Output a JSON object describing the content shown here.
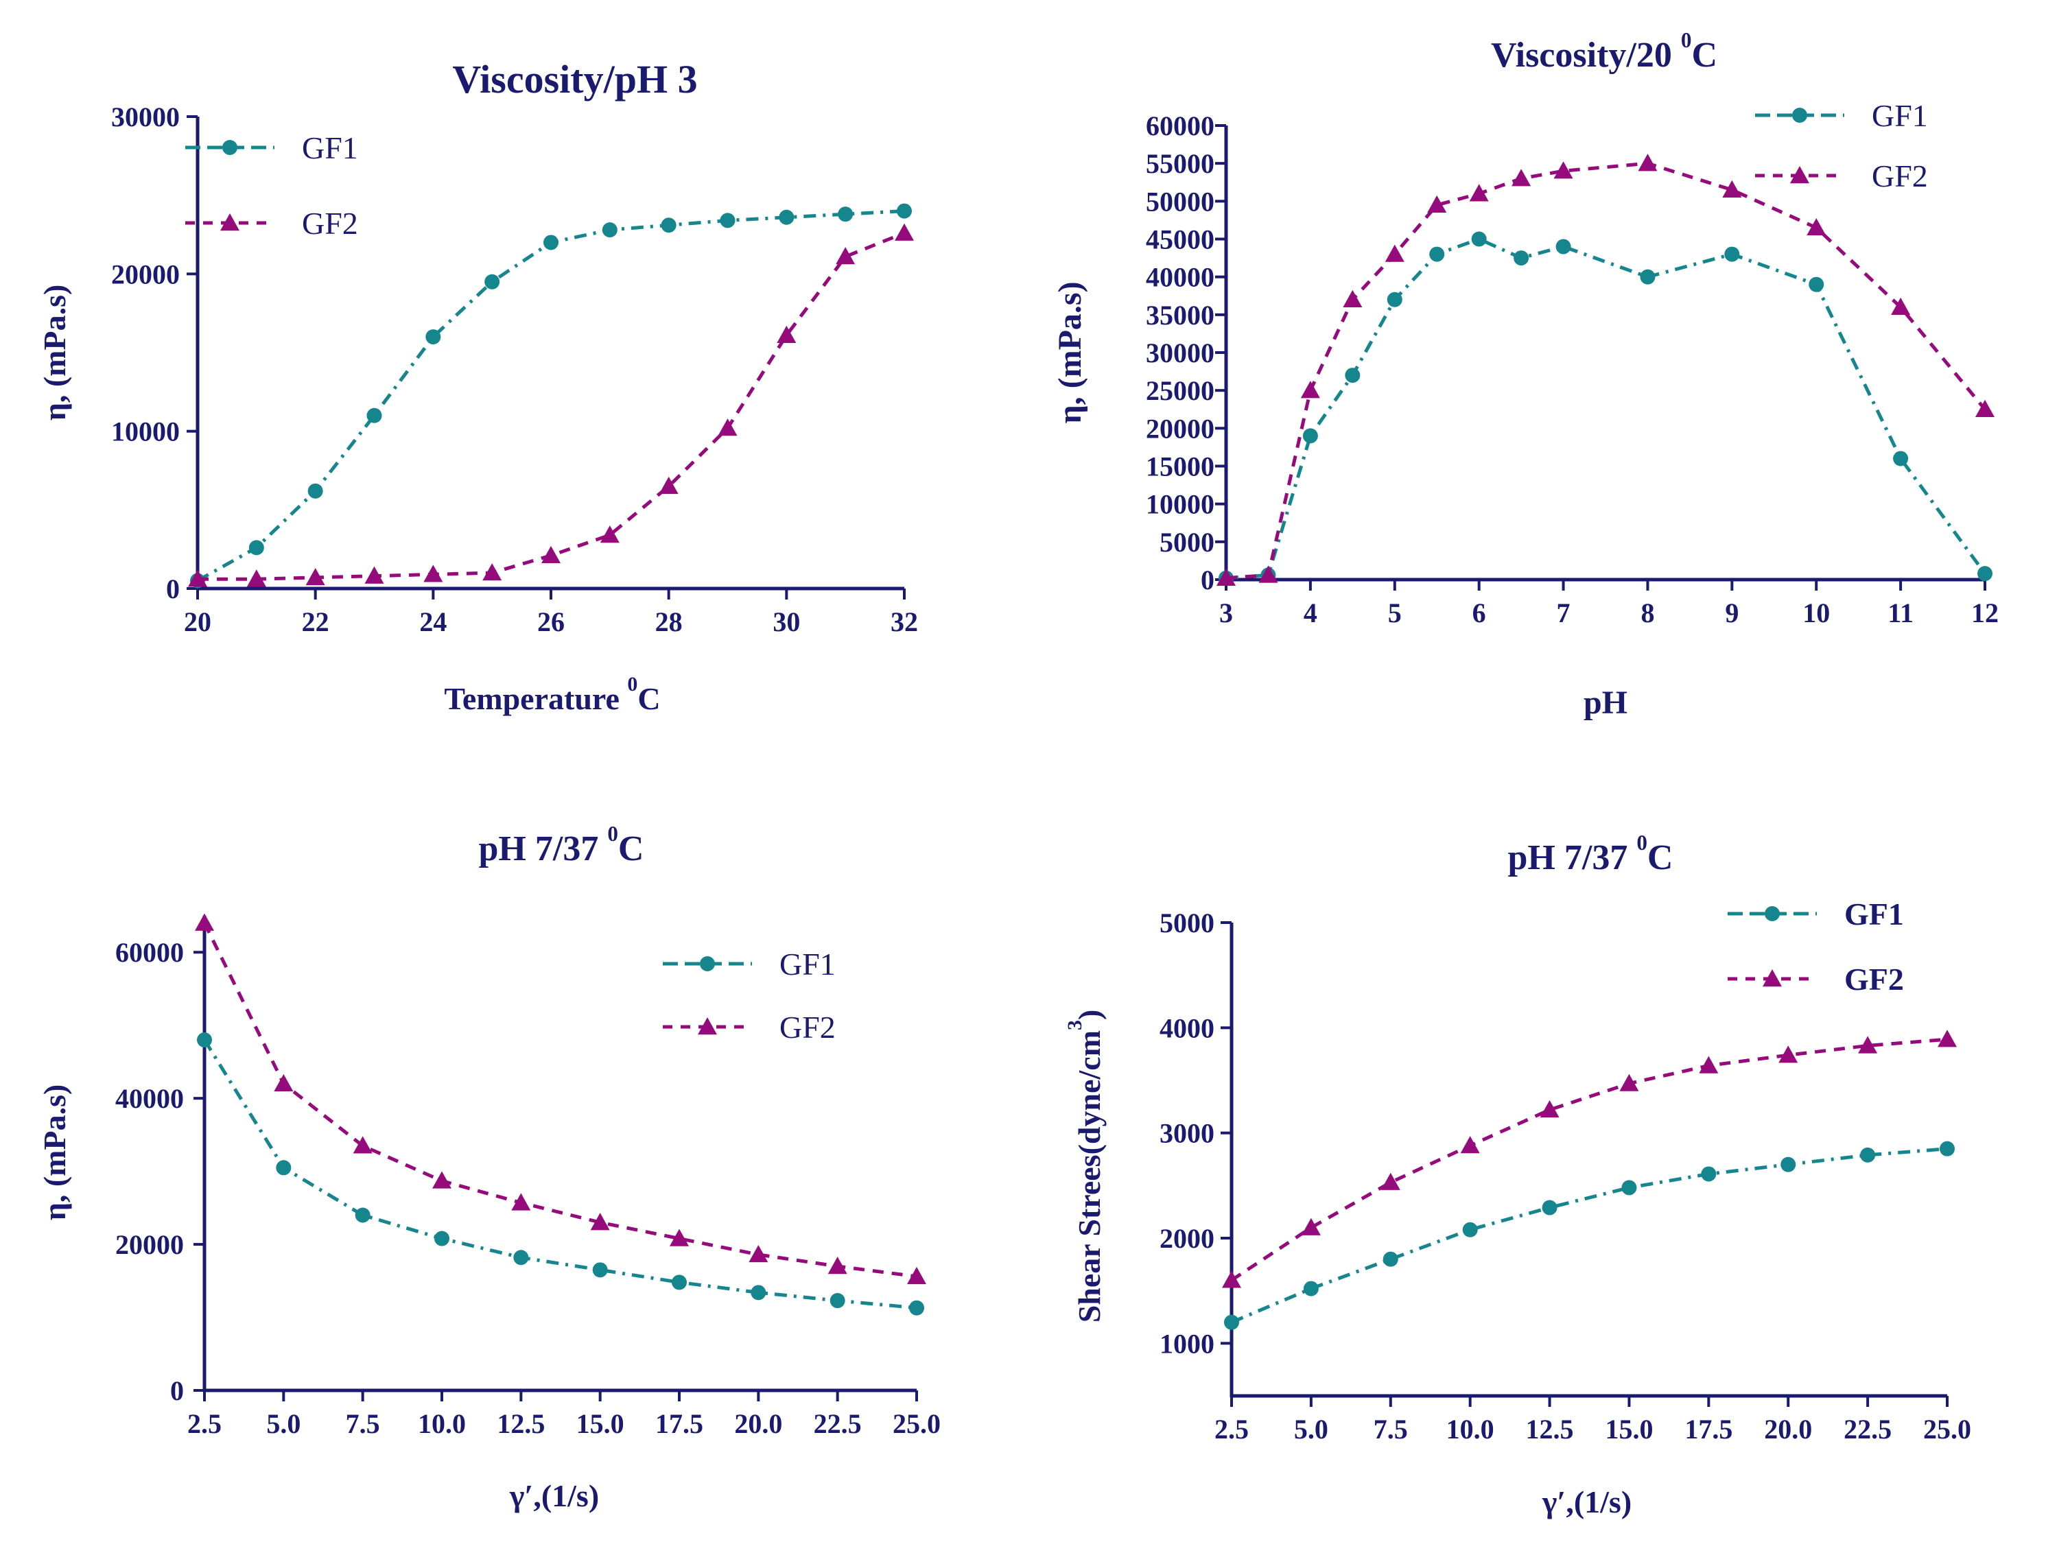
{
  "colors": {
    "gf1": "#16868e",
    "gf2": "#960b7c",
    "axis": "#1a1a6e"
  },
  "chart_data": [
    {
      "type": "line",
      "title": "Viscosity/pH 3",
      "xlabel": "Temperature",
      "xlabel_unit": "C",
      "xlabel_sup": "0",
      "ylabel": "η, (mPa.s)",
      "xlim": [
        20,
        32
      ],
      "ylim": [
        0,
        30000
      ],
      "xticks": [
        20,
        22,
        24,
        26,
        28,
        30,
        32
      ],
      "xtick_labels": [
        "20",
        "22",
        "24",
        "26",
        "28",
        "30",
        "32"
      ],
      "yticks": [
        0,
        10000,
        20000,
        30000
      ],
      "ytick_labels": [
        "0",
        "10000",
        "20000",
        "30000"
      ],
      "legend": [
        "GF1",
        "GF2"
      ],
      "series": [
        {
          "name": "GF1",
          "x": [
            20,
            21,
            22,
            23,
            24,
            25,
            26,
            27,
            28,
            29,
            30,
            31,
            32
          ],
          "values": [
            500,
            2600,
            6200,
            11000,
            16000,
            19500,
            22000,
            22800,
            23100,
            23400,
            23600,
            23800,
            24000
          ]
        },
        {
          "name": "GF2",
          "x": [
            20,
            21,
            22,
            23,
            24,
            25,
            26,
            27,
            28,
            29,
            30,
            31,
            32
          ],
          "values": [
            600,
            600,
            700,
            800,
            900,
            1000,
            2100,
            3400,
            6500,
            10200,
            16100,
            21100,
            22600
          ]
        }
      ]
    },
    {
      "type": "line",
      "title": "Viscosity/20",
      "title_sup": "0",
      "title_unit": "C",
      "xlabel": "pH",
      "ylabel": "η, (mPa.s)",
      "xlim": [
        3,
        12
      ],
      "ylim": [
        0,
        60000
      ],
      "xticks": [
        3,
        4,
        5,
        6,
        7,
        8,
        9,
        10,
        11,
        12
      ],
      "xtick_labels": [
        "3",
        "4",
        "5",
        "6",
        "7",
        "8",
        "9",
        "10",
        "11",
        "12"
      ],
      "yticks": [
        0,
        5000,
        10000,
        15000,
        20000,
        25000,
        30000,
        35000,
        40000,
        45000,
        50000,
        55000,
        60000
      ],
      "ytick_labels": [
        "0",
        "5000",
        "10000",
        "15000",
        "20000",
        "25000",
        "30000",
        "35000",
        "40000",
        "45000",
        "50000",
        "55000",
        "60000"
      ],
      "legend": [
        "GF1",
        "GF2"
      ],
      "series": [
        {
          "name": "GF1",
          "x": [
            3,
            3.5,
            4,
            4.5,
            5,
            5.5,
            6,
            6.5,
            7,
            8,
            9,
            10,
            11,
            12
          ],
          "values": [
            200,
            600,
            19000,
            27000,
            37000,
            43000,
            45000,
            42500,
            44000,
            40000,
            43000,
            39000,
            16000,
            800
          ]
        },
        {
          "name": "GF2",
          "x": [
            3,
            3.5,
            4,
            4.5,
            5,
            5.5,
            6,
            6.5,
            7,
            8,
            9,
            10,
            11,
            12
          ],
          "values": [
            200,
            600,
            25000,
            37000,
            43000,
            49500,
            51000,
            53000,
            54000,
            55000,
            51500,
            46500,
            36000,
            22500
          ]
        }
      ]
    },
    {
      "type": "line",
      "title": "pH 7/37",
      "title_sup": "0",
      "title_unit": "C",
      "xlabel": "γ′,(1/s)",
      "ylabel": "η, (mPa.s)",
      "xlim": [
        2.5,
        25
      ],
      "ylim": [
        0,
        65000
      ],
      "xticks": [
        2.5,
        5,
        7.5,
        10,
        12.5,
        15,
        17.5,
        20,
        22.5,
        25
      ],
      "xtick_labels": [
        "2.5",
        "5.0",
        "7.5",
        "10.0",
        "12.5",
        "15.0",
        "17.5",
        "20.0",
        "22.5",
        "25.0"
      ],
      "yticks": [
        0,
        20000,
        40000,
        60000
      ],
      "ytick_labels": [
        "0",
        "20000",
        "40000",
        "60000"
      ],
      "legend": [
        "GF1",
        "GF2"
      ],
      "series": [
        {
          "name": "GF1",
          "x": [
            2.5,
            5,
            7.5,
            10,
            12.5,
            15,
            17.5,
            20,
            22.5,
            25
          ],
          "values": [
            48000,
            30500,
            24000,
            20800,
            18200,
            16500,
            14800,
            13400,
            12300,
            11300
          ]
        },
        {
          "name": "GF2",
          "x": [
            2.5,
            5,
            7.5,
            10,
            12.5,
            15,
            17.5,
            20,
            22.5,
            25
          ],
          "values": [
            64000,
            42000,
            33500,
            28700,
            25700,
            23000,
            20800,
            18600,
            17000,
            15600
          ]
        }
      ]
    },
    {
      "type": "line",
      "title": "pH 7/37",
      "title_sup": "0",
      "title_unit": "C",
      "xlabel": "γ′,(1/s)",
      "ylabel": "Shear Strees(dyne/cm",
      "ylabel_sup": "3",
      "ylabel_end": ")",
      "xlim": [
        2.5,
        25
      ],
      "ylim": [
        500,
        5000
      ],
      "xticks": [
        2.5,
        5,
        7.5,
        10,
        12.5,
        15,
        17.5,
        20,
        22.5,
        25
      ],
      "xtick_labels": [
        "2.5",
        "5.0",
        "7.5",
        "10.0",
        "12.5",
        "15.0",
        "17.5",
        "20.0",
        "22.5",
        "25.0"
      ],
      "yticks": [
        1000,
        2000,
        3000,
        4000,
        5000
      ],
      "ytick_labels": [
        "1000",
        "2000",
        "3000",
        "4000",
        "5000"
      ],
      "legend": [
        "GF1",
        "GF2"
      ],
      "series": [
        {
          "name": "GF1",
          "x": [
            2.5,
            5,
            7.5,
            10,
            12.5,
            15,
            17.5,
            20,
            22.5,
            25
          ],
          "values": [
            1200,
            1520,
            1800,
            2080,
            2290,
            2480,
            2610,
            2700,
            2790,
            2850
          ]
        },
        {
          "name": "GF2",
          "x": [
            2.5,
            5,
            7.5,
            10,
            12.5,
            15,
            17.5,
            20,
            22.5,
            25
          ],
          "values": [
            1600,
            2100,
            2530,
            2880,
            3220,
            3470,
            3640,
            3740,
            3830,
            3890
          ]
        }
      ]
    }
  ]
}
